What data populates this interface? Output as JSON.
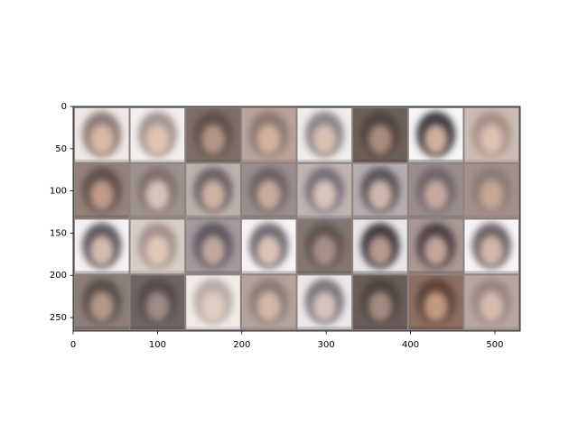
{
  "chart_data": {
    "type": "image",
    "xlim": [
      0,
      530
    ],
    "ylim": [
      266,
      0
    ],
    "xticks": [
      0,
      100,
      200,
      300,
      400,
      500
    ],
    "yticks": [
      0,
      50,
      100,
      150,
      200,
      250
    ]
  }
}
